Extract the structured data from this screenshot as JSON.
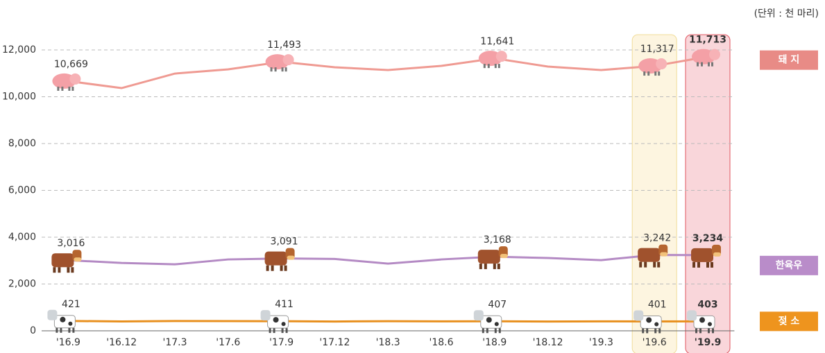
{
  "chart_data": {
    "type": "line",
    "unit": "(단위 : 천 마리)",
    "categories": [
      "'16.9",
      "'16.12",
      "'17.3",
      "'17.6",
      "'17.9",
      "'17.12",
      "'18.3",
      "'18.6",
      "'18.9",
      "'18.12",
      "'19.3",
      "'19.6",
      "'19.9"
    ],
    "series": [
      {
        "name": "돼 지",
        "color": "#ef9a92",
        "legend_color": "#e88b86",
        "values": [
          10669,
          10370,
          10990,
          11170,
          11493,
          11260,
          11140,
          11320,
          11641,
          11290,
          11140,
          11317,
          11713
        ],
        "value_labels": [
          "10,669",
          null,
          null,
          null,
          "11,493",
          null,
          null,
          null,
          "11,641",
          null,
          null,
          "11,317",
          "11,713"
        ]
      },
      {
        "name": "한육우",
        "color": "#b48ac4",
        "legend_color": "#b98cc9",
        "values": [
          3016,
          2900,
          2840,
          3050,
          3091,
          3070,
          2870,
          3050,
          3168,
          3110,
          3020,
          3242,
          3234
        ],
        "value_labels": [
          "3,016",
          null,
          null,
          null,
          "3,091",
          null,
          null,
          null,
          "3,168",
          null,
          null,
          "3,242",
          "3,234"
        ]
      },
      {
        "name": "젖 소",
        "color": "#e8901f",
        "legend_color": "#ee941e",
        "values": [
          421,
          400,
          420,
          415,
          411,
          398,
          410,
          405,
          407,
          395,
          405,
          401,
          403
        ]
      }
    ],
    "ylim": [
      0,
      12000
    ],
    "yticks": [
      0,
      {
        "value": 2000,
        "label": "2,000"
      },
      {
        "value": 4000,
        "label": "4,000"
      },
      {
        "value": 6000,
        "label": "6,000"
      },
      {
        "value": 8000,
        "label": "8,000"
      },
      {
        "value": 10000,
        "label": "10,000"
      },
      {
        "value": 12000,
        "label": "12,000"
      }
    ],
    "grid": true
  }
}
